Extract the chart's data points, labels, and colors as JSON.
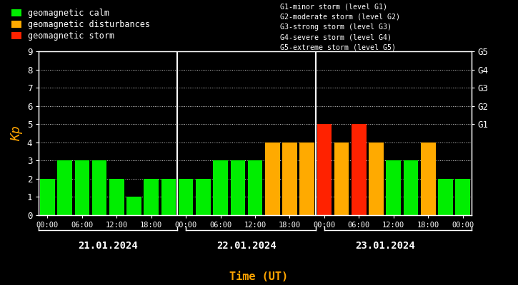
{
  "background_color": "#000000",
  "plot_bg_color": "#000000",
  "text_color": "#ffffff",
  "title_color": "#ffa500",
  "bar_width": 0.85,
  "ylim": [
    0,
    9
  ],
  "yticks": [
    0,
    1,
    2,
    3,
    4,
    5,
    6,
    7,
    8,
    9
  ],
  "ylabel": "Kp",
  "xlabel": "Time (UT)",
  "days": [
    "21.01.2024",
    "22.01.2024",
    "23.01.2024"
  ],
  "values": [
    2,
    3,
    3,
    3,
    2,
    1,
    2,
    2,
    2,
    2,
    3,
    3,
    3,
    4,
    4,
    4,
    5,
    4,
    5,
    4,
    3,
    3,
    4,
    2,
    2
  ],
  "colors": [
    "#00ee00",
    "#00ee00",
    "#00ee00",
    "#00ee00",
    "#00ee00",
    "#00ee00",
    "#00ee00",
    "#00ee00",
    "#00ee00",
    "#00ee00",
    "#00ee00",
    "#00ee00",
    "#00ee00",
    "#ffaa00",
    "#ffaa00",
    "#ffaa00",
    "#ff2200",
    "#ffaa00",
    "#ff2200",
    "#ffaa00",
    "#00ee00",
    "#00ee00",
    "#ffaa00",
    "#00ee00",
    "#00ee00"
  ],
  "right_ytick_labels": [
    "G1",
    "G2",
    "G3",
    "G4",
    "G5"
  ],
  "right_ytick_positions": [
    5,
    6,
    7,
    8,
    9
  ],
  "legend_items": [
    {
      "label": "geomagnetic calm",
      "color": "#00ee00"
    },
    {
      "label": "geomagnetic disturbances",
      "color": "#ffaa00"
    },
    {
      "label": "geomagnetic storm",
      "color": "#ff2200"
    }
  ],
  "storm_legend": [
    "G1-minor storm (level G1)",
    "G2-moderate storm (level G2)",
    "G3-strong storm (level G3)",
    "G4-severe storm (level G4)",
    "G5-extreme storm (level G5)"
  ],
  "xtick_positions": [
    0,
    2,
    4,
    6,
    8,
    10,
    12,
    14,
    16,
    18,
    20,
    22,
    24
  ],
  "xtick_labels": [
    "00:00",
    "06:00",
    "12:00",
    "18:00",
    "00:00",
    "06:00",
    "12:00",
    "18:00",
    "00:00",
    "06:00",
    "12:00",
    "18:00",
    "00:00"
  ],
  "day_centers": [
    3.5,
    11.5,
    19.5
  ],
  "day_separators": [
    7.5,
    15.5
  ]
}
